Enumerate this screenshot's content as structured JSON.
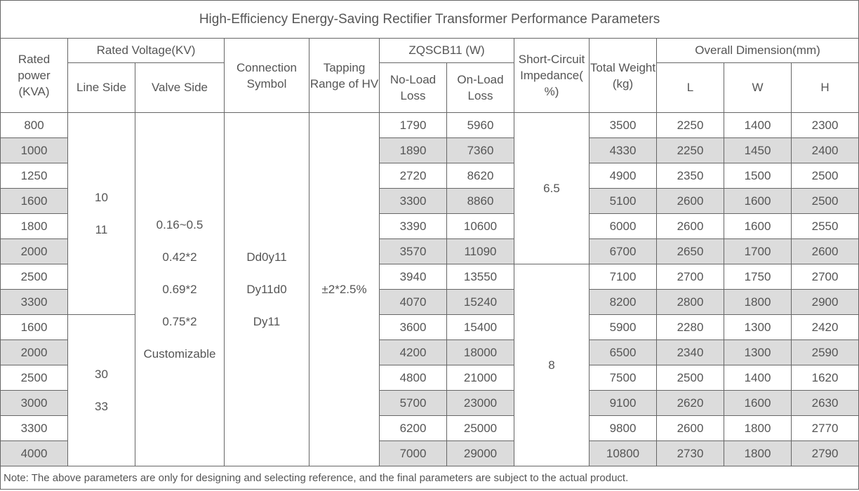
{
  "title": "High-Efficiency Energy-Saving Rectifier Transformer Performance Parameters",
  "headers": {
    "rated_power": "Rated power (KVA)",
    "rated_voltage": "Rated Voltage(KV)",
    "line_side": "Line Side",
    "valve_side": "Valve Side",
    "connection_symbol": "Connection Symbol",
    "tapping_range": "Tapping Range of HV",
    "zqscb11": "ZQSCB11 (W)",
    "no_load_loss": "No-Load Loss",
    "on_load_loss": "On-Load Loss",
    "short_circuit": "Short-Circuit Impedance( %)",
    "total_weight": "Total Weight (kg)",
    "overall_dimension": "Overall Dimension(mm)",
    "dim_l": "L",
    "dim_w": "W",
    "dim_h": "H"
  },
  "merged": {
    "line_side_group_1": [
      "10",
      "11"
    ],
    "line_side_group_2": [
      "30",
      "33"
    ],
    "valve_side": [
      "0.16~0.5",
      "0.42*2",
      "0.69*2",
      "0.75*2",
      "Customizable"
    ],
    "connection_symbol": [
      "Dd0y11",
      "Dy11d0",
      "Dy11"
    ],
    "tapping_range": "±2*2.5%",
    "impedance_group_1": "6.5",
    "impedance_group_2": "8"
  },
  "rows": [
    {
      "power": "800",
      "no_load": "1790",
      "on_load": "5960",
      "weight": "3500",
      "l": "2250",
      "w": "1400",
      "h": "2300"
    },
    {
      "power": "1000",
      "no_load": "1890",
      "on_load": "7360",
      "weight": "4330",
      "l": "2250",
      "w": "1450",
      "h": "2400"
    },
    {
      "power": "1250",
      "no_load": "2720",
      "on_load": "8620",
      "weight": "4900",
      "l": "2350",
      "w": "1500",
      "h": "2500"
    },
    {
      "power": "1600",
      "no_load": "3300",
      "on_load": "8860",
      "weight": "5100",
      "l": "2600",
      "w": "1600",
      "h": "2500"
    },
    {
      "power": "1800",
      "no_load": "3390",
      "on_load": "10600",
      "weight": "6000",
      "l": "2600",
      "w": "1600",
      "h": "2550"
    },
    {
      "power": "2000",
      "no_load": "3570",
      "on_load": "11090",
      "weight": "6700",
      "l": "2650",
      "w": "1700",
      "h": "2600"
    },
    {
      "power": "2500",
      "no_load": "3940",
      "on_load": "13550",
      "weight": "7100",
      "l": "2700",
      "w": "1750",
      "h": "2700"
    },
    {
      "power": "3300",
      "no_load": "4070",
      "on_load": "15240",
      "weight": "8200",
      "l": "2800",
      "w": "1800",
      "h": "2900"
    },
    {
      "power": "1600",
      "no_load": "3600",
      "on_load": "15400",
      "weight": "5900",
      "l": "2280",
      "w": "1300",
      "h": "2420"
    },
    {
      "power": "2000",
      "no_load": "4200",
      "on_load": "18000",
      "weight": "6500",
      "l": "2340",
      "w": "1300",
      "h": "2590"
    },
    {
      "power": "2500",
      "no_load": "4800",
      "on_load": "21000",
      "weight": "7500",
      "l": "2500",
      "w": "1400",
      "h": "1620"
    },
    {
      "power": "3000",
      "no_load": "5700",
      "on_load": "23000",
      "weight": "9100",
      "l": "2620",
      "w": "1600",
      "h": "2630"
    },
    {
      "power": "3300",
      "no_load": "6200",
      "on_load": "25000",
      "weight": "9800",
      "l": "2600",
      "w": "1800",
      "h": "2770"
    },
    {
      "power": "4000",
      "no_load": "7000",
      "on_load": "29000",
      "weight": "10800",
      "l": "2730",
      "w": "1800",
      "h": "2790"
    }
  ],
  "note": "Note: The above parameters are only for designing and selecting  reference, and the final parameters are subject to the actual product.",
  "colors": {
    "border": "#666666",
    "text": "#555555",
    "shade": "#dcdcdc"
  }
}
